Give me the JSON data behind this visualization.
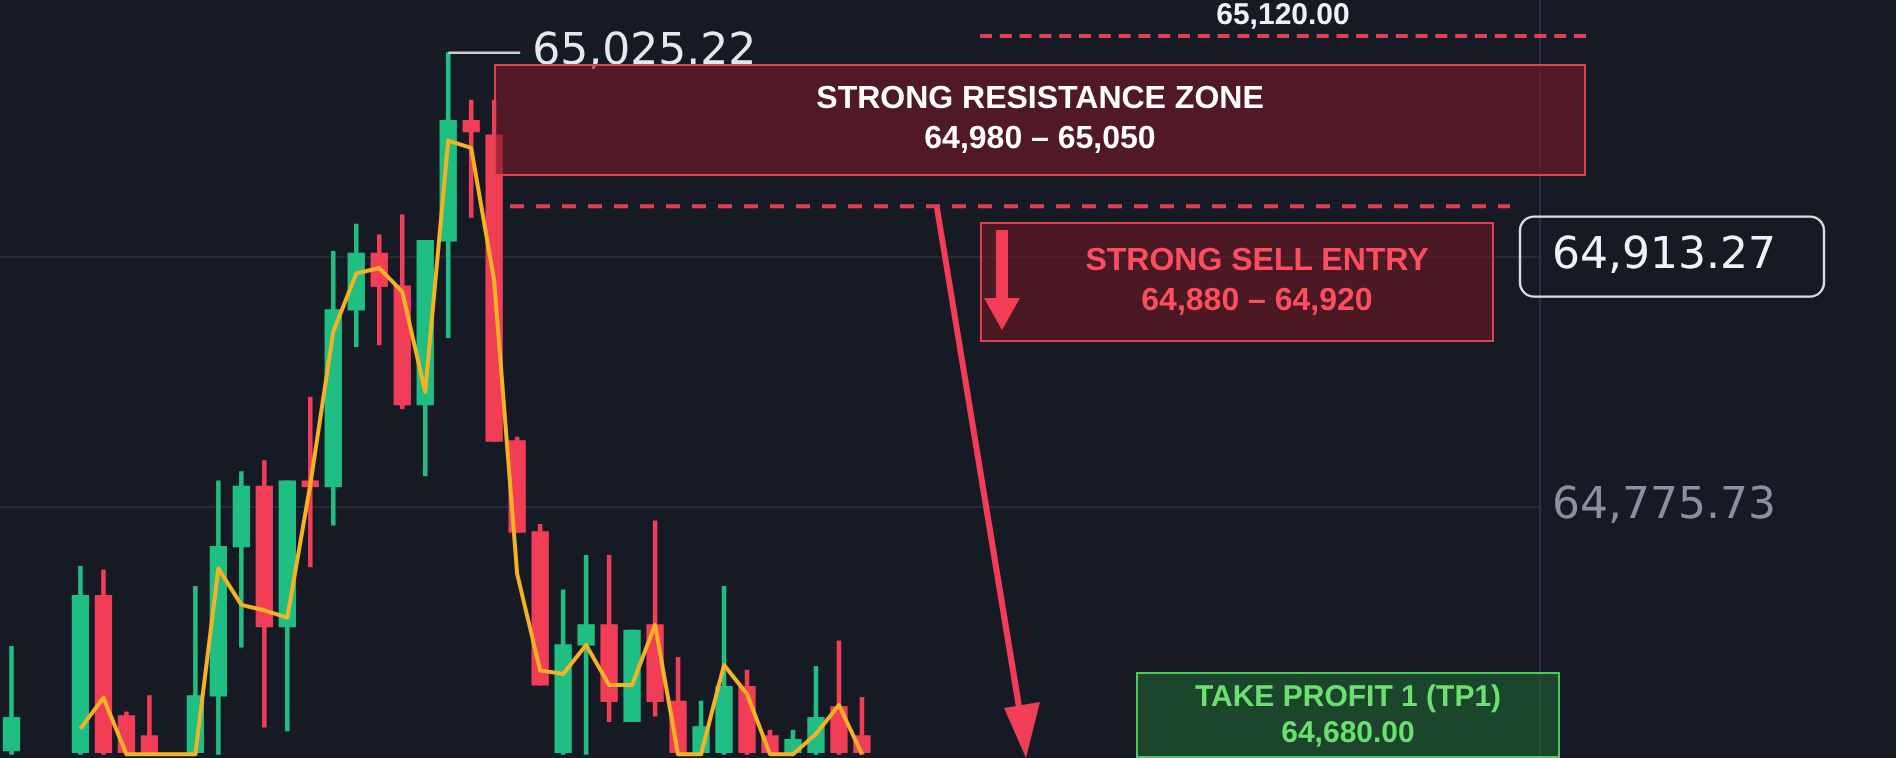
{
  "chart_data": {
    "type": "candlestick",
    "categories": [
      null,
      null,
      null,
      null,
      null,
      null,
      null,
      null,
      null,
      null,
      null,
      null,
      null,
      null,
      null,
      null,
      null,
      null,
      null,
      null,
      null,
      null,
      null,
      null,
      null,
      null,
      null,
      null,
      null,
      null,
      null,
      null,
      null,
      null,
      null,
      null,
      null,
      null,
      null,
      null,
      null,
      null,
      null,
      null,
      null,
      null,
      null,
      null,
      null,
      null,
      null,
      null,
      null,
      null,
      null,
      null,
      null,
      null,
      null,
      null,
      null,
      null,
      null,
      null,
      null,
      null,
      null
    ],
    "ohlc": [
      [
        64642,
        64699,
        64640,
        64660
      ],
      null,
      null,
      [
        64641,
        64743,
        64640,
        64727
      ],
      [
        64727,
        64741,
        64640,
        64641
      ],
      [
        64661,
        64663,
        64640,
        64641
      ],
      [
        64650,
        64672,
        64640,
        64641
      ],
      null,
      [
        64641,
        64732,
        64640,
        64672
      ],
      [
        64672,
        64790,
        64640,
        64754
      ],
      [
        64754,
        64795,
        64699,
        64787
      ],
      [
        64787,
        64801,
        64655,
        64710
      ],
      [
        64710,
        64790,
        64653,
        64790
      ],
      [
        64790,
        64836,
        64743,
        64787
      ],
      [
        64787,
        64916,
        64766,
        64884
      ],
      [
        64884,
        64931,
        64864,
        64915
      ],
      [
        64915,
        64925,
        64865,
        64897
      ],
      [
        64897,
        64936,
        64830,
        64832
      ],
      [
        64832,
        64922,
        64793,
        64922
      ],
      [
        64922,
        65025.22,
        64869,
        64988
      ],
      [
        64988,
        64999,
        64935,
        64982
      ],
      [
        64980,
        64999,
        64812,
        64812
      ],
      [
        64812,
        64814,
        64762,
        64762
      ],
      [
        64762,
        64766,
        64678,
        64678
      ],
      [
        64641,
        64730,
        64640,
        64700
      ],
      [
        64700,
        64749,
        64640,
        64711
      ],
      [
        64711,
        64749,
        64658,
        64669
      ],
      [
        64658,
        64708,
        64658,
        64708
      ],
      [
        64711,
        64768,
        64661,
        64669
      ],
      [
        64669,
        64693,
        64640,
        64641
      ],
      [
        64641,
        64669,
        64640,
        64655
      ],
      [
        64641,
        64732,
        64640,
        64677
      ],
      [
        64677,
        64686,
        64640,
        64641
      ],
      [
        64650,
        64653,
        64640,
        64641
      ],
      [
        64641,
        64653,
        64640,
        64648
      ],
      [
        64641,
        64688,
        64640,
        64660
      ],
      [
        64666,
        64702,
        64640,
        64641
      ],
      [
        64650,
        64671,
        64640,
        64641
      ],
      null,
      null,
      null,
      null,
      null,
      null,
      null,
      null,
      null,
      null,
      null,
      null,
      null,
      null,
      null,
      null,
      null,
      null,
      null,
      null,
      null,
      null,
      null,
      null,
      null,
      null,
      null,
      null,
      null
    ],
    "series": [
      {
        "type": "line",
        "color": "#f5b324",
        "values": [
          null,
          null,
          null,
          64654,
          64671,
          64640,
          64640,
          64640,
          64640,
          64742,
          64722,
          64719,
          64715,
          64788,
          64872,
          64904,
          64907,
          64894,
          64839,
          64977,
          64973,
          64900,
          64739,
          64686,
          64684,
          64700,
          64678,
          64678,
          64711,
          64640,
          64640,
          64689,
          64673,
          64640,
          64640,
          64651,
          64667,
          64640,
          null,
          null,
          null,
          null,
          null,
          null,
          null,
          null,
          null,
          null,
          null,
          null,
          null,
          null,
          null,
          null,
          null,
          null,
          null,
          null,
          null,
          null,
          null,
          null,
          null,
          null,
          null,
          null,
          null
        ]
      }
    ],
    "ylim": [
      64637,
      65054
    ],
    "yticks": [
      {
        "value": 64913.27,
        "label": "64,913.27"
      },
      {
        "value": 64775.73,
        "label": "64,775.73"
      }
    ],
    "ref_lines": [
      {
        "axis": "y",
        "value": 64941,
        "color": "#e0404f",
        "line_style": "dashed"
      }
    ],
    "grid": "y",
    "tick_labels": "y",
    "annotations": [
      "65,025.22",
      "65,120.00",
      "STRONG RESISTANCE ZONE",
      "64,980 – 65,050",
      "STRONG SELL ENTRY",
      "64,880 – 64,920",
      "TAKE PROFIT 1 (TP1)",
      "64,680.00"
    ]
  }
}
